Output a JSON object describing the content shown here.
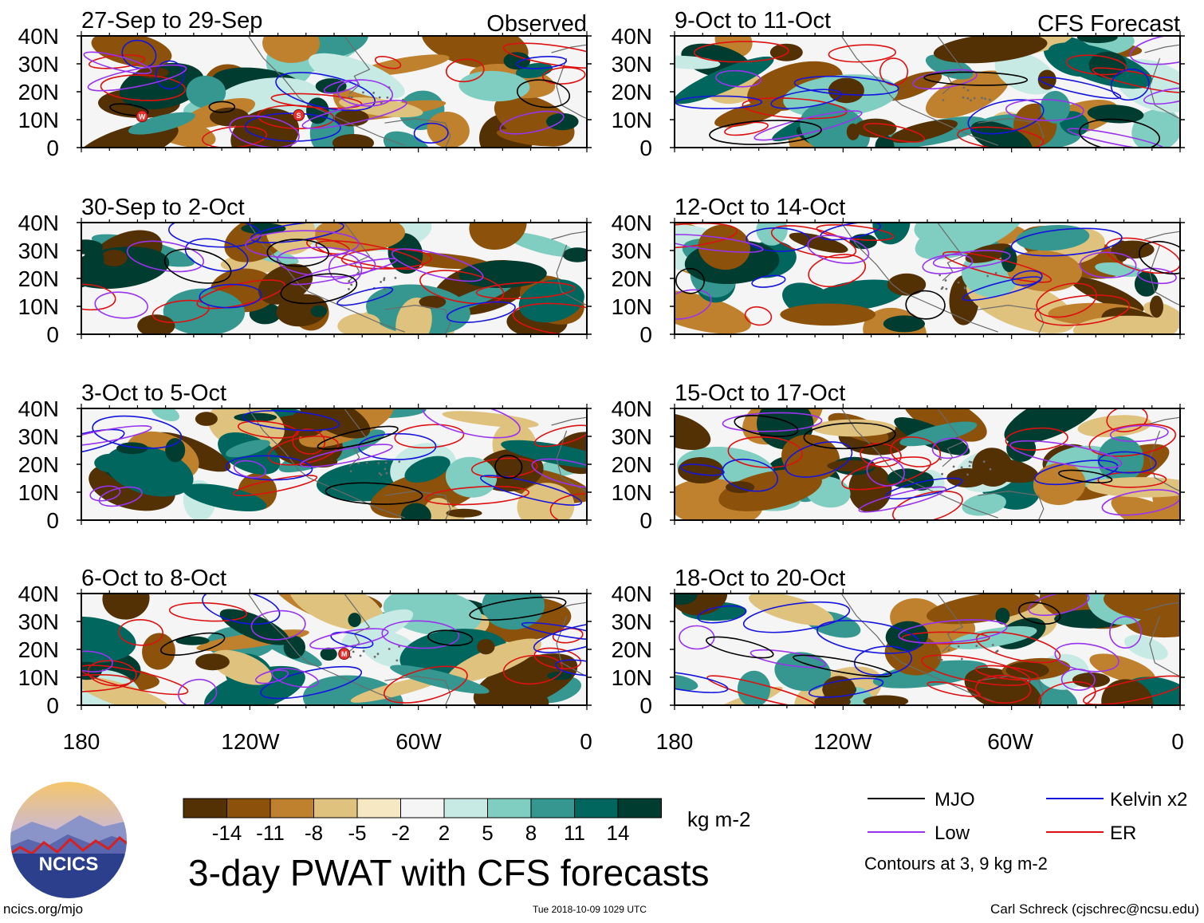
{
  "figure": {
    "title": "3-day PWAT with CFS forecasts",
    "column_labels": {
      "observed": "Observed",
      "forecast": "CFS Forecast"
    },
    "lat_labels": [
      "40N",
      "30N",
      "20N",
      "10N",
      "0"
    ],
    "lon_labels": [
      "180",
      "120W",
      "60W",
      "0"
    ],
    "panels": [
      {
        "period": "27-Sep to 29-Sep",
        "column": "observed",
        "storms": [
          {
            "label": "W"
          },
          {
            "label": "S"
          }
        ]
      },
      {
        "period": "30-Sep to 2-Oct",
        "column": "observed",
        "storms": []
      },
      {
        "period": "3-Oct to 5-Oct",
        "column": "observed",
        "storms": []
      },
      {
        "period": "6-Oct to 8-Oct",
        "column": "observed",
        "storms": [
          {
            "label": "M"
          }
        ]
      },
      {
        "period": "9-Oct to 11-Oct",
        "column": "forecast",
        "storms": []
      },
      {
        "period": "12-Oct to 14-Oct",
        "column": "forecast",
        "storms": []
      },
      {
        "period": "15-Oct to 17-Oct",
        "column": "forecast",
        "storms": []
      },
      {
        "period": "18-Oct to 20-Oct",
        "column": "forecast",
        "storms": []
      }
    ]
  },
  "colorbar": {
    "unit": "kg m-2",
    "tick_labels": [
      "-14",
      "-11",
      "-8",
      "-5",
      "-2",
      "2",
      "5",
      "8",
      "11",
      "14"
    ],
    "colors": [
      "#543005",
      "#8c510a",
      "#bf812d",
      "#dfc27d",
      "#f6e8c3",
      "#f5f5f5",
      "#c7eae5",
      "#80cdc1",
      "#35978f",
      "#01665e",
      "#003c30"
    ]
  },
  "legend": {
    "items": [
      {
        "label": "MJO",
        "color": "#000000"
      },
      {
        "label": "Kelvin x2",
        "color": "#1515dd"
      },
      {
        "label": "Low",
        "color": "#9933ee"
      },
      {
        "label": "ER",
        "color": "#dd1111"
      }
    ],
    "note": "Contours at 3, 9 kg m-2"
  },
  "logo": {
    "text": "NCICS"
  },
  "footer": {
    "site": "ncics.org/mjo",
    "timestamp": "Tue 2018-10-09 1029 UTC",
    "author": "Carl Schreck (cjschrec@ncsu.edu)"
  }
}
